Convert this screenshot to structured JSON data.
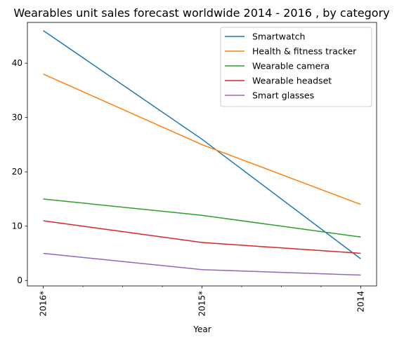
{
  "chart_data": {
    "type": "line",
    "title": "Wearables unit sales forecast worldwide 2014 - 2016 , by category",
    "xlabel": "Year",
    "ylabel": "",
    "categories": [
      "2016*",
      "2015*",
      "2014"
    ],
    "ylim": [
      -1,
      47.5
    ],
    "yticks": [
      0,
      10,
      20,
      30,
      40
    ],
    "grid": false,
    "legend_position": "top-right",
    "series": [
      {
        "name": "Smartwatch",
        "color": "#1f77b4",
        "values": [
          46,
          26,
          4
        ]
      },
      {
        "name": "Health & fitness tracker",
        "color": "#ff7f0e",
        "values": [
          38,
          25,
          14
        ]
      },
      {
        "name": "Wearable camera",
        "color": "#2ca02c",
        "values": [
          15,
          12,
          8
        ]
      },
      {
        "name": "Wearable headset",
        "color": "#d62728",
        "values": [
          11,
          7,
          5
        ]
      },
      {
        "name": "Smart glasses",
        "color": "#9467bd",
        "values": [
          5,
          2,
          1
        ]
      }
    ]
  }
}
